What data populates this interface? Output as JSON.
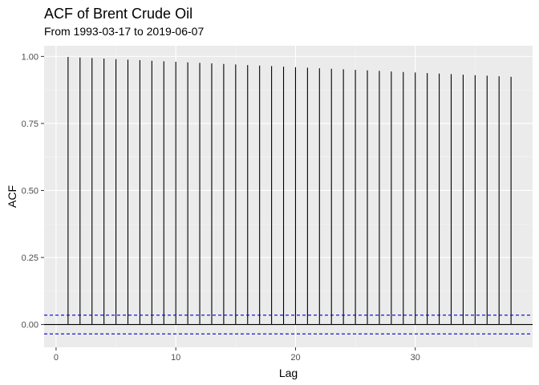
{
  "chart_data": {
    "type": "bar",
    "title": "ACF of Brent Crude Oil",
    "subtitle": "From 1993-03-17 to 2019-06-07",
    "xlabel": "Lag",
    "ylabel": "ACF",
    "xlim": [
      -1,
      39.8
    ],
    "ylim": [
      -0.085,
      1.04
    ],
    "x_ticks": [
      0,
      10,
      20,
      30
    ],
    "y_ticks": [
      0.0,
      0.25,
      0.5,
      0.75,
      1.0
    ],
    "y_tick_labels": [
      "0.00",
      "0.25",
      "0.50",
      "0.75",
      "1.00"
    ],
    "confidence_bound": 0.035,
    "lags": [
      1,
      2,
      3,
      4,
      5,
      6,
      7,
      8,
      9,
      10,
      11,
      12,
      13,
      14,
      15,
      16,
      17,
      18,
      19,
      20,
      21,
      22,
      23,
      24,
      25,
      26,
      27,
      28,
      29,
      30,
      31,
      32,
      33,
      34,
      35,
      36,
      37,
      38
    ],
    "values": [
      0.998,
      0.996,
      0.994,
      0.992,
      0.99,
      0.988,
      0.986,
      0.984,
      0.982,
      0.98,
      0.978,
      0.976,
      0.974,
      0.972,
      0.97,
      0.968,
      0.966,
      0.964,
      0.962,
      0.96,
      0.958,
      0.956,
      0.954,
      0.952,
      0.95,
      0.948,
      0.946,
      0.944,
      0.942,
      0.94,
      0.938,
      0.936,
      0.934,
      0.932,
      0.93,
      0.928,
      0.926,
      0.924
    ],
    "grid": true,
    "colors": {
      "panel_background": "#ebebeb",
      "grid_major": "#ffffff",
      "grid_minor": "#f5f5f5",
      "bars": "#000000",
      "zero_line": "#000000",
      "confidence_lines": "#0000cc"
    }
  }
}
